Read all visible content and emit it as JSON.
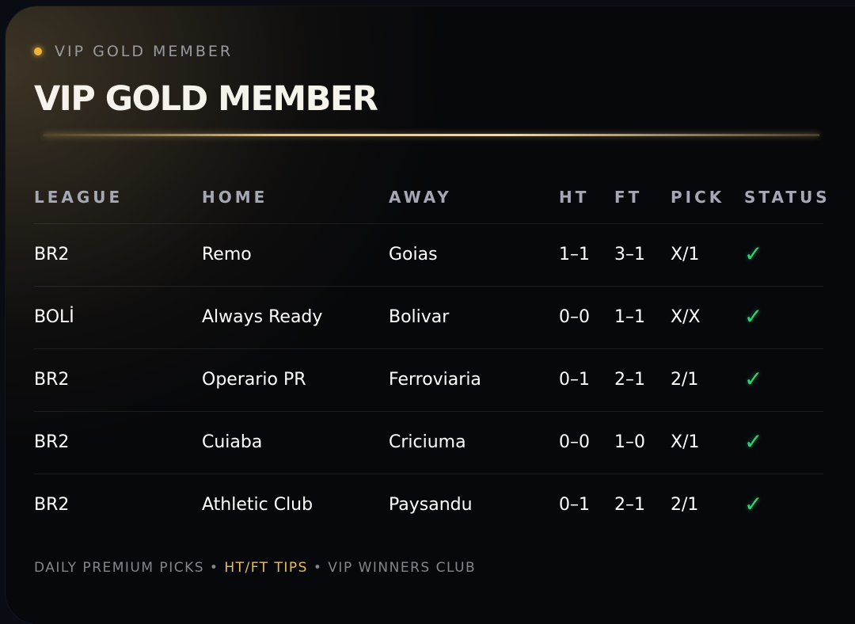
{
  "kicker": "VIP GOLD MEMBER",
  "title": "VIP GOLD MEMBER",
  "columns": [
    "LEAGUE",
    "HOME",
    "AWAY",
    "HT",
    "FT",
    "PICK",
    "STATUS"
  ],
  "rows": [
    {
      "league": "BR2",
      "home": "Remo",
      "away": "Goias",
      "ht": "1–1",
      "ft": "3–1",
      "pick": "X/1",
      "status": "✓"
    },
    {
      "league": "BOLİ",
      "home": "Always Ready",
      "away": "Bolivar",
      "ht": "0–0",
      "ft": "1–1",
      "pick": "X/X",
      "status": "✓"
    },
    {
      "league": "BR2",
      "home": "Operario PR",
      "away": "Ferroviaria",
      "ht": "0–1",
      "ft": "2–1",
      "pick": "2/1",
      "status": "✓"
    },
    {
      "league": "BR2",
      "home": "Cuiaba",
      "away": "Criciuma",
      "ht": "0–0",
      "ft": "1–0",
      "pick": "X/1",
      "status": "✓"
    },
    {
      "league": "BR2",
      "home": "Athletic Club",
      "away": "Paysandu",
      "ht": "0–1",
      "ft": "2–1",
      "pick": "2/1",
      "status": "✓"
    }
  ],
  "footer": {
    "part1": "DAILY PREMIUM PICKS •",
    "part2": "HT/FT TIPS",
    "part3": "• VIP WINNERS CLUB"
  },
  "colors": {
    "accent_gold": "#e7be5a",
    "status_win": "#2fcf73"
  }
}
